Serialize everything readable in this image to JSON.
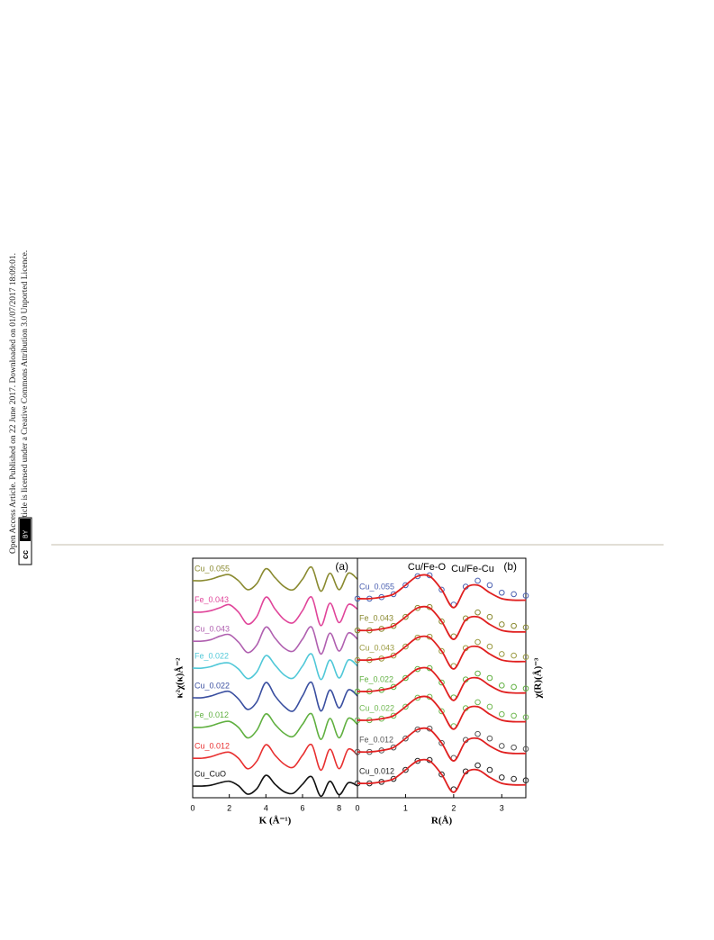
{
  "sidebar": {
    "line1": "Open Access Article. Published on 22 June 2017. Downloaded on 01/07/2017 18:09:01.",
    "line2": "This article is licensed under a Creative Commons Attribution 3.0 Unported Licence.",
    "badge_cc": "cc",
    "badge_by": "BY"
  },
  "chart_data": [
    {
      "type": "line",
      "panel": "(a)",
      "xlabel": "K (Å⁻¹)",
      "ylabel": "κ²χ(κ)Å⁻²",
      "xlim": [
        0,
        9
      ],
      "xticks": [
        0,
        2,
        4,
        6,
        8
      ],
      "ylim": [
        0,
        8
      ],
      "x": [
        0,
        0.5,
        1,
        1.5,
        2,
        2.5,
        3,
        3.5,
        4,
        4.5,
        5,
        5.5,
        6,
        6.5,
        7,
        7.5,
        8,
        8.5,
        9
      ],
      "series": [
        {
          "name": "Cu_0.055",
          "color": "#8a8a30",
          "values": [
            7.25,
            7.25,
            7.3,
            7.4,
            7.45,
            7.25,
            6.95,
            7.15,
            7.65,
            7.35,
            7.05,
            6.95,
            7.3,
            7.7,
            6.9,
            7.5,
            6.95,
            7.5,
            7.3
          ]
        },
        {
          "name": "Fe_0.043",
          "color": "#e0459a",
          "values": [
            6.2,
            6.2,
            6.25,
            6.35,
            6.45,
            6.2,
            5.8,
            6.05,
            6.7,
            6.3,
            5.95,
            5.85,
            6.25,
            6.7,
            5.75,
            6.5,
            5.85,
            6.45,
            6.3
          ]
        },
        {
          "name": "Cu_0.043",
          "color": "#b060b0",
          "values": [
            5.23,
            5.23,
            5.28,
            5.4,
            5.45,
            5.2,
            4.85,
            5.1,
            5.7,
            5.33,
            5.0,
            4.9,
            5.3,
            5.7,
            4.8,
            5.5,
            4.9,
            5.5,
            5.3
          ]
        },
        {
          "name": "Fe_0.022",
          "color": "#50c8d8",
          "values": [
            4.33,
            4.33,
            4.38,
            4.48,
            4.5,
            4.3,
            3.98,
            4.2,
            4.75,
            4.43,
            4.1,
            4.0,
            4.4,
            4.8,
            3.95,
            4.6,
            4.0,
            4.6,
            4.4
          ]
        },
        {
          "name": "Cu_0.022",
          "color": "#3a4fa0",
          "values": [
            3.34,
            3.34,
            3.4,
            3.5,
            3.55,
            3.3,
            2.95,
            3.2,
            3.85,
            3.4,
            3.05,
            2.9,
            3.4,
            3.85,
            2.9,
            3.6,
            3.0,
            3.6,
            3.4
          ]
        },
        {
          "name": "Fe_0.012",
          "color": "#60b040",
          "values": [
            2.35,
            2.35,
            2.4,
            2.5,
            2.55,
            2.35,
            2.0,
            2.25,
            2.8,
            2.45,
            2.15,
            2.05,
            2.45,
            2.8,
            1.95,
            2.65,
            2.0,
            2.65,
            2.45
          ]
        },
        {
          "name": "Cu_0.012",
          "color": "#e83030",
          "values": [
            1.32,
            1.32,
            1.37,
            1.47,
            1.52,
            1.32,
            0.97,
            1.22,
            1.77,
            1.42,
            1.12,
            1.02,
            1.42,
            1.77,
            0.92,
            1.62,
            0.97,
            1.62,
            1.42
          ]
        },
        {
          "name": "Cu_CuO",
          "color": "#111111",
          "values": [
            0.39,
            0.39,
            0.42,
            0.5,
            0.55,
            0.4,
            0.12,
            0.3,
            0.75,
            0.45,
            0.2,
            0.15,
            0.45,
            0.7,
            0.05,
            0.55,
            0.1,
            0.5,
            0.4
          ]
        }
      ]
    },
    {
      "type": "scatter-fit",
      "panel": "(b)",
      "xlabel": "R(Å)",
      "ylabel": "χ(R)(Å)⁻³",
      "annotations": [
        "Cu/Fe-O",
        "Cu/Fe-Cu"
      ],
      "xlim": [
        0,
        3.5
      ],
      "xticks": [
        0,
        1,
        2,
        3
      ],
      "ylim": [
        0,
        8
      ],
      "fit_color": "#e02020",
      "x": [
        0,
        0.25,
        0.5,
        0.75,
        1,
        1.25,
        1.5,
        1.75,
        2,
        2.25,
        2.5,
        2.75,
        3,
        3.25,
        3.5
      ],
      "series": [
        {
          "name": "Cu_0.055",
          "color": "#4a5fb0",
          "values": [
            6.65,
            6.65,
            6.7,
            6.8,
            7.1,
            7.4,
            7.43,
            6.95,
            6.45,
            7.05,
            7.25,
            7.1,
            6.85,
            6.8,
            6.75
          ],
          "fit_values": [
            6.65,
            6.65,
            6.7,
            6.8,
            7.1,
            7.4,
            7.4,
            6.95,
            6.35,
            7.0,
            7.1,
            6.85,
            6.65,
            6.6,
            6.6
          ]
        },
        {
          "name": "Fe_0.043",
          "color": "#8a8a30",
          "values": [
            5.59,
            5.59,
            5.64,
            5.74,
            6.04,
            6.34,
            6.37,
            5.89,
            5.39,
            5.99,
            6.19,
            6.04,
            5.79,
            5.74,
            5.69
          ],
          "fit_values": [
            5.59,
            5.59,
            5.64,
            5.74,
            6.04,
            6.34,
            6.34,
            5.89,
            5.29,
            5.94,
            6.04,
            5.79,
            5.59,
            5.54,
            5.54
          ]
        },
        {
          "name": "Cu_0.043",
          "color": "#9a9a40",
          "values": [
            4.6,
            4.6,
            4.65,
            4.75,
            5.05,
            5.35,
            5.38,
            4.9,
            4.4,
            5.0,
            5.2,
            5.05,
            4.8,
            4.75,
            4.7
          ],
          "fit_values": [
            4.6,
            4.6,
            4.65,
            4.75,
            5.05,
            5.35,
            5.35,
            4.9,
            4.3,
            4.95,
            5.05,
            4.8,
            4.6,
            4.55,
            4.55
          ]
        },
        {
          "name": "Fe_0.022",
          "color": "#60b040",
          "values": [
            3.55,
            3.55,
            3.6,
            3.7,
            4.0,
            4.3,
            4.33,
            3.85,
            3.35,
            3.95,
            4.15,
            4.0,
            3.75,
            3.7,
            3.65
          ],
          "fit_values": [
            3.55,
            3.55,
            3.6,
            3.7,
            4.0,
            4.3,
            4.3,
            3.85,
            3.25,
            3.9,
            4.0,
            3.75,
            3.55,
            3.5,
            3.5
          ]
        },
        {
          "name": "Cu_0.022",
          "color": "#70b850",
          "values": [
            2.59,
            2.59,
            2.64,
            2.74,
            3.04,
            3.34,
            3.37,
            2.89,
            2.39,
            2.99,
            3.19,
            3.04,
            2.79,
            2.74,
            2.69
          ],
          "fit_values": [
            2.59,
            2.59,
            2.64,
            2.74,
            3.04,
            3.34,
            3.34,
            2.89,
            2.29,
            2.94,
            3.04,
            2.79,
            2.59,
            2.54,
            2.54
          ]
        },
        {
          "name": "Fe_0.012",
          "color": "#555555",
          "values": [
            1.53,
            1.53,
            1.58,
            1.68,
            1.98,
            2.28,
            2.31,
            1.83,
            1.33,
            1.93,
            2.13,
            1.98,
            1.73,
            1.68,
            1.63
          ],
          "fit_values": [
            1.53,
            1.53,
            1.58,
            1.68,
            1.98,
            2.28,
            2.28,
            1.83,
            1.23,
            1.88,
            1.98,
            1.73,
            1.53,
            1.48,
            1.48
          ]
        },
        {
          "name": "Cu_0.012",
          "color": "#222222",
          "values": [
            0.48,
            0.48,
            0.53,
            0.63,
            0.93,
            1.23,
            1.26,
            0.78,
            0.28,
            0.88,
            1.08,
            0.93,
            0.68,
            0.63,
            0.58
          ],
          "fit_values": [
            0.48,
            0.48,
            0.53,
            0.63,
            0.93,
            1.23,
            1.23,
            0.78,
            0.18,
            0.83,
            0.93,
            0.68,
            0.48,
            0.43,
            0.43
          ]
        }
      ]
    }
  ]
}
